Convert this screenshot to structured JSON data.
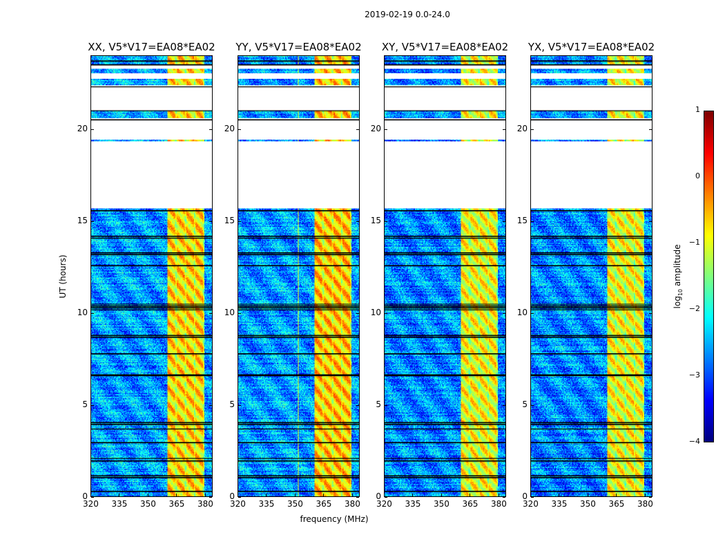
{
  "suptitle": "2019-02-19 0.0-24.0",
  "colorbar": {
    "label_prefix": "log",
    "label_sub": "10",
    "label_suffix": " amplitude",
    "range": [
      -4,
      1
    ],
    "ticks": [
      "1",
      "0",
      "−1",
      "−2",
      "−3",
      "−4"
    ],
    "tick_values": [
      1,
      0,
      -1,
      -2,
      -3,
      -4
    ],
    "colormap": "jet"
  },
  "chart_data": {
    "type": "heatmap",
    "xlabel": "frequency (MHz)",
    "ylabel": "UT (hours)",
    "xlim": [
      320,
      384
    ],
    "ylim": [
      0,
      24
    ],
    "xticks": [
      320,
      335,
      350,
      365,
      380
    ],
    "xtick_labels": [
      "320",
      "335",
      "350",
      "365",
      "380"
    ],
    "yticks": [
      0,
      5,
      10,
      15,
      20
    ],
    "ytick_labels": [
      "0",
      "5",
      "10",
      "15",
      "20"
    ],
    "value_label": "log10 amplitude",
    "value_range": [
      -4,
      1
    ],
    "data_ut_ranges": [
      [
        0,
        15.7
      ],
      [
        19.33,
        19.45
      ],
      [
        20.6,
        21.05
      ],
      [
        22.4,
        22.75
      ],
      [
        23.05,
        23.3
      ],
      [
        23.55,
        24
      ]
    ],
    "flag_lines_ut": [
      0.3,
      1.05,
      1.15,
      1.95,
      2.1,
      2.95,
      3.7,
      3.95,
      4.05,
      6.6,
      6.65,
      7.8,
      8.7,
      8.8,
      10.2,
      10.3,
      10.4,
      10.5,
      12.6,
      13.2,
      13.3,
      14.1,
      14.2,
      15.6,
      20.55,
      21.05,
      22.35,
      23.55,
      23.75
    ],
    "rfi_band_mhz": [
      360.5,
      380
    ],
    "panels": [
      {
        "title": "XX, V5*V17=EA08*EA02",
        "baseline_level": -2.6,
        "rfi_level": -0.7
      },
      {
        "title": "YY, V5*V17=EA08*EA02",
        "baseline_level": -2.6,
        "rfi_level": -0.6
      },
      {
        "title": "XY, V5*V17=EA08*EA02",
        "baseline_level": -2.7,
        "rfi_level": -0.9
      },
      {
        "title": "YX, V5*V17=EA08*EA02",
        "baseline_level": -2.7,
        "rfi_level": -0.9
      }
    ]
  }
}
